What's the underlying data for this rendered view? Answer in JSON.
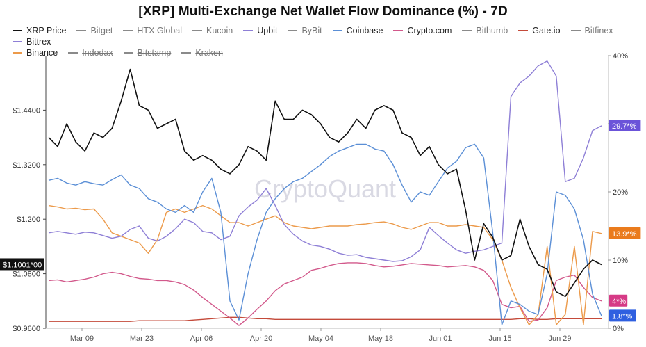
{
  "chart_data": {
    "type": "line",
    "title": "[XRP] Multi-Exchange Net Wallet Flow Dominance (%) - 7D",
    "watermark": "CryptoQuant",
    "x_ticks": [
      "Mar 09",
      "Mar 23",
      "Apr 06",
      "Apr 20",
      "May 04",
      "May 18",
      "Jun 01",
      "Jun 15",
      "Jun 29"
    ],
    "x_range": [
      "Mar 02",
      "Jul 08"
    ],
    "y_left": {
      "ticks": [
        "$0.9600",
        "$1.0800",
        "$1.200",
        "$1.3200",
        "$1.4400"
      ],
      "range": [
        0.96,
        1.56
      ]
    },
    "y_right": {
      "ticks": [
        "0%",
        "10%",
        "20%",
        "30%",
        "40%"
      ],
      "range": [
        0,
        40
      ]
    },
    "price_label": "$1.1001*00",
    "grid": false,
    "legend_position": "top",
    "series_lines": [
      {
        "name": "XRP Price",
        "color": "#111111",
        "axis": "left",
        "hidden": false,
        "badge": "",
        "values": [
          1.38,
          1.36,
          1.41,
          1.37,
          1.35,
          1.39,
          1.38,
          1.4,
          1.46,
          1.53,
          1.45,
          1.44,
          1.4,
          1.41,
          1.42,
          1.35,
          1.33,
          1.34,
          1.33,
          1.31,
          1.3,
          1.32,
          1.36,
          1.35,
          1.33,
          1.46,
          1.42,
          1.42,
          1.44,
          1.43,
          1.41,
          1.38,
          1.37,
          1.39,
          1.42,
          1.4,
          1.44,
          1.45,
          1.44,
          1.39,
          1.38,
          1.34,
          1.36,
          1.32,
          1.3,
          1.31,
          1.22,
          1.11,
          1.19,
          1.16,
          1.11,
          1.12,
          1.2,
          1.14,
          1.1,
          1.09,
          1.04,
          1.03,
          1.06,
          1.09,
          1.11,
          1.1
        ]
      },
      {
        "name": "Bitget",
        "color": "#e47c5b",
        "axis": "right",
        "hidden": true,
        "badge": "",
        "values": []
      },
      {
        "name": "HTX Global",
        "color": "#6b6b6b",
        "axis": "right",
        "hidden": true,
        "badge": "",
        "values": []
      },
      {
        "name": "Kucoin",
        "color": "#5fa8a2",
        "axis": "right",
        "hidden": true,
        "badge": "",
        "values": []
      },
      {
        "name": "Upbit",
        "color": "#8e7fd6",
        "axis": "right",
        "hidden": false,
        "badge": "",
        "values": [
          14.0,
          14.2,
          14.0,
          13.8,
          14.1,
          14.0,
          13.6,
          13.2,
          13.5,
          14.5,
          15.0,
          13.2,
          12.8,
          13.5,
          14.6,
          16.0,
          15.5,
          14.2,
          14.0,
          13.0,
          13.5,
          16.5,
          17.8,
          18.8,
          20.5,
          18.0,
          15.2,
          13.8,
          12.8,
          12.2,
          12.0,
          11.6,
          11.0,
          10.7,
          10.8,
          10.4,
          10.2,
          10.0,
          9.8,
          9.9,
          10.5,
          11.5,
          14.8,
          13.6,
          12.5,
          11.5,
          11.0,
          11.3,
          11.5,
          12.0,
          12.5,
          34.0,
          36.0,
          37.0,
          38.5,
          39.2,
          37.0,
          21.5,
          22.0,
          25.0,
          29.0,
          29.7
        ]
      },
      {
        "name": "ByBit",
        "color": "#bfa6e6",
        "axis": "right",
        "hidden": true,
        "badge": "",
        "values": []
      },
      {
        "name": "Coinbase",
        "color": "#5b8fd6",
        "axis": "right",
        "hidden": false,
        "badge": "1.8*%",
        "values": [
          21.7,
          22.0,
          21.3,
          21.0,
          21.5,
          21.2,
          21.0,
          21.8,
          22.5,
          21.0,
          20.5,
          19.0,
          18.5,
          17.5,
          17.0,
          18.0,
          17.0,
          20.0,
          22.0,
          17.0,
          4.0,
          1.2,
          8.0,
          13.0,
          17.0,
          19.0,
          20.5,
          21.5,
          22.0,
          23.0,
          24.0,
          25.2,
          26.0,
          26.5,
          27.0,
          27.0,
          26.3,
          26.0,
          24.0,
          21.0,
          18.5,
          20.0,
          19.5,
          21.5,
          23.5,
          24.5,
          26.5,
          27.0,
          25.0,
          14.0,
          0.5,
          4.0,
          3.5,
          2.5,
          2.0,
          8.0,
          20.0,
          19.5,
          17.5,
          13.0,
          5.0,
          1.8
        ]
      },
      {
        "name": "Crypto.com",
        "color": "#d2598b",
        "axis": "right",
        "hidden": false,
        "badge": "4*%",
        "values": [
          7.0,
          7.1,
          6.8,
          7.0,
          7.2,
          7.5,
          8.0,
          8.2,
          8.0,
          7.6,
          7.3,
          7.2,
          7.0,
          7.0,
          6.8,
          6.4,
          5.6,
          4.5,
          3.5,
          2.5,
          1.5,
          0.4,
          1.5,
          2.8,
          4.0,
          5.5,
          6.5,
          7.0,
          7.5,
          8.5,
          8.8,
          9.2,
          9.5,
          9.6,
          9.6,
          9.5,
          9.2,
          9.0,
          9.1,
          9.3,
          9.5,
          9.4,
          9.3,
          9.2,
          9.0,
          9.1,
          9.2,
          9.0,
          8.5,
          7.0,
          3.5,
          3.0,
          3.2,
          1.0,
          1.2,
          3.0,
          7.0,
          7.5,
          7.8,
          6.0,
          4.5,
          4.0
        ]
      },
      {
        "name": "Bithumb",
        "color": "#7a7a7a",
        "axis": "right",
        "hidden": true,
        "badge": "",
        "values": []
      },
      {
        "name": "Gate.io",
        "color": "#c44a3a",
        "axis": "right",
        "hidden": false,
        "badge": "",
        "values": [
          1.0,
          1.0,
          1.0,
          1.0,
          1.0,
          1.0,
          1.0,
          1.0,
          1.0,
          1.0,
          1.1,
          1.1,
          1.1,
          1.1,
          1.1,
          1.1,
          1.2,
          1.3,
          1.4,
          1.5,
          1.6,
          1.6,
          1.5,
          1.4,
          1.4,
          1.3,
          1.3,
          1.3,
          1.3,
          1.3,
          1.3,
          1.3,
          1.3,
          1.3,
          1.3,
          1.3,
          1.3,
          1.3,
          1.3,
          1.3,
          1.3,
          1.3,
          1.3,
          1.3,
          1.3,
          1.3,
          1.3,
          1.3,
          1.3,
          1.3,
          1.3,
          1.3,
          1.4,
          1.4,
          1.3,
          1.3,
          1.4,
          1.4,
          1.4,
          1.4,
          1.4,
          1.4
        ]
      },
      {
        "name": "Bitfinex",
        "color": "#6b6b6b",
        "axis": "right",
        "hidden": true,
        "badge": "",
        "values": []
      },
      {
        "name": "Bittrex",
        "color": "#8e7fd6",
        "axis": "right",
        "hidden": false,
        "badge": "29.7*%",
        "values": []
      },
      {
        "name": "Binance",
        "color": "#ec9a4a",
        "axis": "right",
        "hidden": false,
        "badge": "13.9*%",
        "values": [
          18.0,
          17.8,
          17.5,
          17.6,
          17.4,
          17.5,
          16.0,
          14.0,
          13.5,
          13.0,
          12.5,
          11.0,
          13.0,
          17.0,
          17.5,
          17.0,
          17.5,
          18.0,
          17.5,
          16.5,
          15.5,
          15.5,
          15.0,
          15.5,
          16.0,
          16.5,
          15.5,
          15.0,
          14.8,
          14.6,
          14.8,
          15.0,
          15.0,
          15.0,
          15.2,
          15.3,
          15.5,
          15.6,
          15.3,
          14.8,
          14.5,
          15.0,
          15.5,
          15.5,
          15.0,
          15.0,
          15.2,
          15.0,
          14.8,
          13.0,
          10.0,
          6.0,
          3.0,
          0.5,
          2.0,
          12.0,
          0.5,
          2.0,
          12.0,
          0.5,
          14.2,
          13.9
        ]
      },
      {
        "name": "Indodax",
        "color": "#6b6b6b",
        "axis": "right",
        "hidden": true,
        "badge": "",
        "values": []
      },
      {
        "name": "Bitstamp",
        "color": "#6b6b6b",
        "axis": "right",
        "hidden": true,
        "badge": "",
        "values": []
      },
      {
        "name": "Kraken",
        "color": "#6b6b6b",
        "axis": "right",
        "hidden": true,
        "badge": "",
        "values": []
      }
    ]
  }
}
